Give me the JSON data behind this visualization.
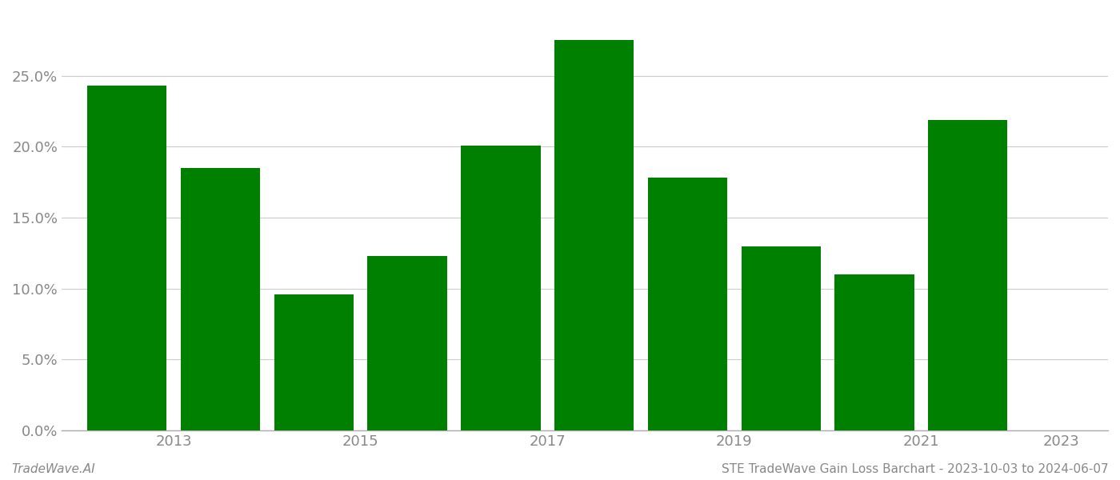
{
  "years": [
    2013,
    2014,
    2015,
    2016,
    2017,
    2018,
    2019,
    2020,
    2021,
    2022
  ],
  "values": [
    0.243,
    0.185,
    0.096,
    0.123,
    0.201,
    0.275,
    0.178,
    0.13,
    0.11,
    0.219
  ],
  "bar_color": "#008000",
  "background_color": "#ffffff",
  "grid_color": "#cccccc",
  "ylabel_color": "#888888",
  "xlabel_color": "#888888",
  "footer_left": "TradeWave.AI",
  "footer_right": "STE TradeWave Gain Loss Barchart - 2023-10-03 to 2024-06-07",
  "footer_color": "#888888",
  "footer_fontsize": 11,
  "bar_width": 0.85,
  "ylim": [
    0,
    0.295
  ],
  "yticks": [
    0.0,
    0.05,
    0.1,
    0.15,
    0.2,
    0.25
  ],
  "xtick_years": [
    2013,
    2015,
    2017,
    2019,
    2021,
    2023
  ],
  "tick_fontsize": 13,
  "axis_color": "#aaaaaa",
  "xlim_left": 2012.3,
  "xlim_right": 2023.5
}
